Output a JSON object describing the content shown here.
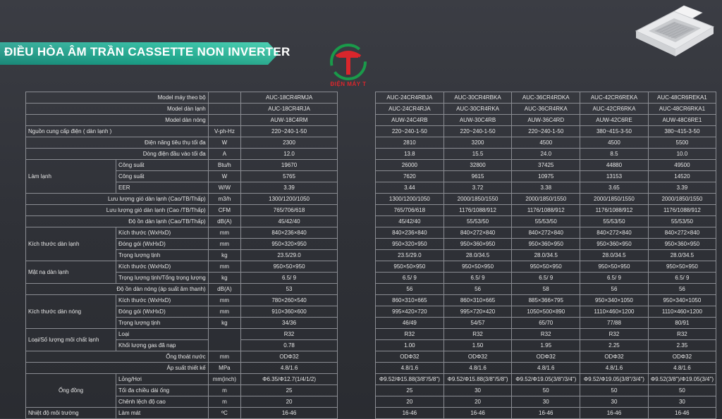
{
  "title": "ĐIỀU HÒA ÂM TRẦN CASSETTE NON INVERTER",
  "logo_text": "ĐIỆN MÁY T",
  "icon": "ceiling-cassette-unit",
  "colors": {
    "banner": "#1fb09a",
    "logo_green": "#1a9a4a",
    "logo_red": "#d9262c"
  },
  "left_rows": [
    [
      "Model máy theo bộ",
      "",
      "AUC-18CR4RMJA"
    ],
    [
      "Model dàn lạnh",
      "",
      "AUC-18CR4RJA"
    ],
    [
      "Model dàn nóng",
      "",
      "AUW-18C4RM"
    ],
    [
      "Nguồn cung cấp điện ( dàn lạnh )",
      "V-ph-Hz",
      "220~240-1-50"
    ],
    [
      "Điện năng tiêu thụ tối đa",
      "W",
      "2300"
    ],
    [
      "Dòng điện đầu vào tối đa",
      "A",
      "12.0"
    ],
    [
      "Công suất",
      "Btu/h",
      "19670"
    ],
    [
      "Công suất",
      "W",
      "5765"
    ],
    [
      "EER",
      "W/W",
      "3.39"
    ],
    [
      "Lưu lượng gió dàn lạnh (Cao/TB/Thấp)",
      "m3/h",
      "1300/1200/1050"
    ],
    [
      "Lưu lượng gió dàn lạnh (Cao /TB/Thấp)",
      "CFM",
      "765/706/618"
    ],
    [
      "Độ ồn dàn lạnh (Cao/TB/Thấp)",
      "dB(A)",
      "45/42/40"
    ],
    [
      "Kích thước (WxHxD)",
      "mm",
      "840×236×840"
    ],
    [
      "Đóng gói (WxHxD)",
      "mm",
      "950×320×950"
    ],
    [
      "Trọng lượng tịnh",
      "kg",
      "23.5/29.0"
    ],
    [
      "Kích thước (WxHxD)",
      "mm",
      "950×50×950"
    ],
    [
      "Trọng lượng tịnh/Tổng trọng lượng",
      "kg",
      "6.5/ 9"
    ],
    [
      "Độ ồn dàn nóng (áp suất âm thanh)",
      "dB(A)",
      "53"
    ],
    [
      "Kích thước (WxHxD)",
      "mm",
      "780×260×540"
    ],
    [
      "Đóng gói (WxHxD)",
      "mm",
      "910×360×600"
    ],
    [
      "Trọng lượng tịnh",
      "kg",
      "34/36"
    ],
    [
      "Loại",
      "",
      "R32"
    ],
    [
      "Khối lượng gas đã nạp",
      "",
      "0.78"
    ],
    [
      "Ống thoát nước",
      "mm",
      "ODΦ32"
    ],
    [
      "Áp suất thiết kế",
      "MPa",
      "4.8/1.6"
    ],
    [
      "Lỏng/Hơi",
      "mm(inch)",
      "Φ6.35/Φ12.7(1/4/1/2)"
    ],
    [
      "Tối đa chiều dài ống",
      "m",
      "25"
    ],
    [
      "Chênh lệch độ cao",
      "m",
      "20"
    ],
    [
      "Làm mát",
      "ºC",
      "16-46"
    ]
  ],
  "groups": {
    "lam_lanh": "Làm lạnh",
    "kt_dan_lanh": "Kích thước dàn lạnh",
    "mat_na": "Mặt nạ dàn lạnh",
    "kt_dan_nong": "Kích thước dàn nóng",
    "moi_chat": "Loại/Số lượng môi chất lạnh",
    "ong_dong": "Ống đồng",
    "nhiet_do": "Nhiệt độ môi trường"
  },
  "right_rows": [
    [
      "AUC-24CR4RBJA",
      "AUC-30CR4RBKA",
      "AUC-36CR4RDKA",
      "AUC-42CR6REKA",
      "AUC-48CR6REKA1"
    ],
    [
      "AUC-24CR4RJA",
      "AUC-30CR4RKA",
      "AUC-36CR4RKA",
      "AUC-42CR6RKA",
      "AUC-48CR6RKA1"
    ],
    [
      "AUW-24C4RB",
      "AUW-30C4RB",
      "AUW-36C4RD",
      "AUW-42C6RE",
      "AUW-48C6RE1"
    ],
    [
      "220~240-1-50",
      "220~240-1-50",
      "220~240-1-50",
      "380~415-3-50",
      "380~415-3-50"
    ],
    [
      "2810",
      "3200",
      "4500",
      "4500",
      "5500"
    ],
    [
      "13.8",
      "15.5",
      "24.0",
      "8.5",
      "10.0"
    ],
    [
      "26000",
      "32800",
      "37425",
      "44880",
      "49500"
    ],
    [
      "7620",
      "9615",
      "10975",
      "13153",
      "14520"
    ],
    [
      "3.44",
      "3.72",
      "3.38",
      "3.65",
      "3.39"
    ],
    [
      "1300/1200/1050",
      "2000/1850/1550",
      "2000/1850/1550",
      "2000/1850/1550",
      "2000/1850/1550"
    ],
    [
      "765/706/618",
      "1176/1088/912",
      "1176/1088/912",
      "1176/1088/912",
      "1176/1088/912"
    ],
    [
      "45/42/40",
      "55/53/50",
      "55/53/50",
      "55/53/50",
      "55/53/50"
    ],
    [
      "840×236×840",
      "840×272×840",
      "840×272×840",
      "840×272×840",
      "840×272×840"
    ],
    [
      "950×320×950",
      "950×360×950",
      "950×360×950",
      "950×360×950",
      "950×360×950"
    ],
    [
      "23.5/29.0",
      "28.0/34.5",
      "28.0/34.5",
      "28.0/34.5",
      "28.0/34.5"
    ],
    [
      "950×50×950",
      "950×50×950",
      "950×50×950",
      "950×50×950",
      "950×50×950"
    ],
    [
      "6.5/ 9",
      "6.5/ 9",
      "6.5/ 9",
      "6.5/ 9",
      "6.5/ 9"
    ],
    [
      "56",
      "56",
      "58",
      "56",
      "56"
    ],
    [
      "860×310×665",
      "860×310×665",
      "885×366×795",
      "950×340×1050",
      "950×340×1050"
    ],
    [
      "995×420×720",
      "995×720×420",
      "1050×500×890",
      "1110×460×1200",
      "1110×460×1200"
    ],
    [
      "46/49",
      "54/57",
      "65/70",
      "77/88",
      "80/91"
    ],
    [
      "R32",
      "R32",
      "R32",
      "R32",
      "R32"
    ],
    [
      "1.00",
      "1.50",
      "1.95",
      "2.25",
      "2.35"
    ],
    [
      "ODΦ32",
      "ODΦ32",
      "ODΦ32",
      "ODΦ32",
      "ODΦ32"
    ],
    [
      "4.8/1.6",
      "4.8/1.6",
      "4.8/1.6",
      "4.8/1.6",
      "4.8/1.6"
    ],
    [
      "Φ9.52/Φ15.88(3/8\"/5/8\")",
      "Φ9.52/Φ15.88(3/8\"/5/8\")",
      "Φ9.52/Φ19.05(3/8\"/3/4\")",
      "Φ9.52/Φ19.05(3/8\"/3/4\")",
      "Φ9.52(3/8\")/Φ19.05(3/4\")"
    ],
    [
      "25",
      "30",
      "50",
      "50",
      "50"
    ],
    [
      "20",
      "20",
      "30",
      "30",
      "30"
    ],
    [
      "16-46",
      "16-46",
      "16-46",
      "16-46",
      "16-46"
    ]
  ]
}
